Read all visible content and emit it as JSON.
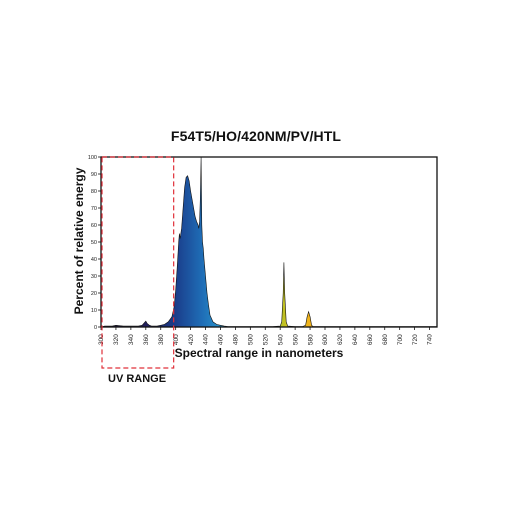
{
  "chart_data": {
    "type": "area",
    "title": "F54T5/HO/420NM/PV/HTL",
    "xlabel": "Spectral range in nanometers",
    "ylabel": "Percent of relative energy",
    "xlim": [
      300,
      750
    ],
    "ylim": [
      0,
      100
    ],
    "x_ticks": [
      300,
      320,
      340,
      360,
      380,
      400,
      420,
      440,
      460,
      480,
      500,
      520,
      540,
      560,
      580,
      600,
      620,
      640,
      660,
      680,
      700,
      720,
      740
    ],
    "y_ticks": [
      0,
      10,
      20,
      30,
      40,
      50,
      60,
      70,
      80,
      90,
      100
    ],
    "annotations": [
      {
        "label": "UV RANGE",
        "x_range": [
          300,
          400
        ],
        "style": "dashed-box"
      }
    ],
    "series": [
      {
        "x": [
          300,
          305,
          310,
          315,
          320,
          330,
          340,
          350,
          355,
          360,
          362,
          365,
          368,
          370,
          375,
          380,
          385,
          390,
          395,
          398,
          400,
          402,
          404,
          405,
          406,
          408,
          410,
          412,
          414,
          416,
          418,
          420,
          422,
          424,
          426,
          428,
          430,
          431,
          432,
          433,
          434,
          435,
          436,
          437,
          438,
          440,
          442,
          444,
          446,
          448,
          450,
          455,
          460,
          465,
          470,
          480,
          490,
          500,
          510,
          520,
          530,
          540,
          542,
          544,
          545,
          546,
          548,
          550,
          560,
          570,
          574,
          576,
          578,
          580,
          582,
          584,
          590,
          600,
          620,
          640,
          660,
          680,
          700,
          720,
          740,
          750
        ],
        "y": [
          0,
          0.5,
          0.5,
          0.5,
          1,
          0.5,
          0.5,
          0.5,
          1,
          3.5,
          2,
          1,
          0.5,
          0.5,
          0.5,
          1,
          1.5,
          3,
          6,
          12,
          22,
          35,
          50,
          55,
          52,
          58,
          70,
          82,
          88,
          89,
          86,
          80,
          75,
          70,
          65,
          62,
          60,
          58,
          62,
          75,
          100,
          60,
          50,
          46,
          40,
          30,
          20,
          13,
          7,
          5,
          3,
          1.5,
          1,
          0.5,
          0.3,
          0.3,
          0.3,
          0.3,
          0.3,
          0.3,
          0.3,
          0.5,
          3,
          20,
          38,
          20,
          3,
          0.5,
          0.3,
          0.3,
          1,
          6,
          9,
          6,
          1,
          0.3,
          0.3,
          0.3,
          0.3,
          0.3,
          0.3,
          0.3,
          0.3,
          0.3,
          0.3,
          0.3
        ]
      }
    ]
  }
}
